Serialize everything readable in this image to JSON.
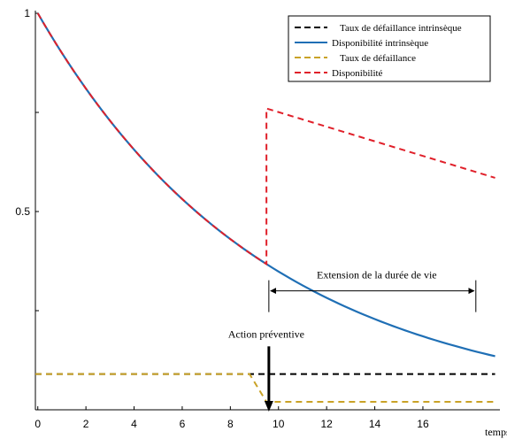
{
  "chart_data": {
    "type": "line",
    "title": "",
    "xlabel": "temps",
    "ylabel": "",
    "xlim": [
      -0.1,
      19.2
    ],
    "ylim": [
      0,
      1
    ],
    "xticks": [
      "0",
      "2",
      "4",
      "6",
      "8",
      "10",
      "12",
      "14",
      "16"
    ],
    "xtick_values": [
      0,
      2,
      4,
      6,
      8,
      10,
      12,
      14,
      16
    ],
    "yticks": [
      "0.5",
      "1"
    ],
    "ytick_values": [
      0.5,
      1
    ],
    "legend_position": "top-right",
    "series": [
      {
        "name": "Taux de défaillance intrinsèque",
        "style": "dashed",
        "color": "#000000",
        "x": [
          -0.1,
          19.0
        ],
        "y": [
          0.09,
          0.09
        ]
      },
      {
        "name": "Disponibilité intrinsèque",
        "style": "solid",
        "color": "#1f6fb5",
        "x": [
          0,
          1,
          2,
          3,
          4,
          5,
          6,
          7,
          8,
          9,
          9.5,
          10,
          11,
          12,
          13,
          14,
          15,
          16,
          17,
          18,
          19
        ],
        "y": [
          1.0,
          0.9,
          0.81,
          0.729,
          0.656,
          0.59,
          0.531,
          0.478,
          0.43,
          0.387,
          0.368,
          0.349,
          0.314,
          0.282,
          0.254,
          0.229,
          0.206,
          0.185,
          0.167,
          0.15,
          0.135
        ]
      },
      {
        "name": "Taux de défaillance",
        "style": "dashed",
        "color": "#c9a227",
        "x": [
          -0.1,
          8.8,
          9.5,
          10.3,
          19.0
        ],
        "y": [
          0.09,
          0.09,
          0.02,
          0.02,
          0.02
        ]
      },
      {
        "name": "Disponibilité",
        "style": "dashed",
        "color": "#e0202a",
        "x": [
          0,
          1,
          2,
          3,
          4,
          5,
          6,
          7,
          8,
          9,
          9.5,
          9.5,
          19.0
        ],
        "y": [
          1.0,
          0.9,
          0.81,
          0.729,
          0.656,
          0.59,
          0.531,
          0.478,
          0.43,
          0.387,
          0.368,
          0.76,
          0.585
        ]
      }
    ],
    "annotations": [
      {
        "text": "Extension de la durée de vie",
        "kind": "double-arrow",
        "x_start": 9.6,
        "x_end": 18.2,
        "y": 0.3
      },
      {
        "text": "Action préventive",
        "kind": "down-arrow",
        "x": 9.6,
        "y_top": 0.16,
        "y_bottom": 0.0
      }
    ]
  }
}
